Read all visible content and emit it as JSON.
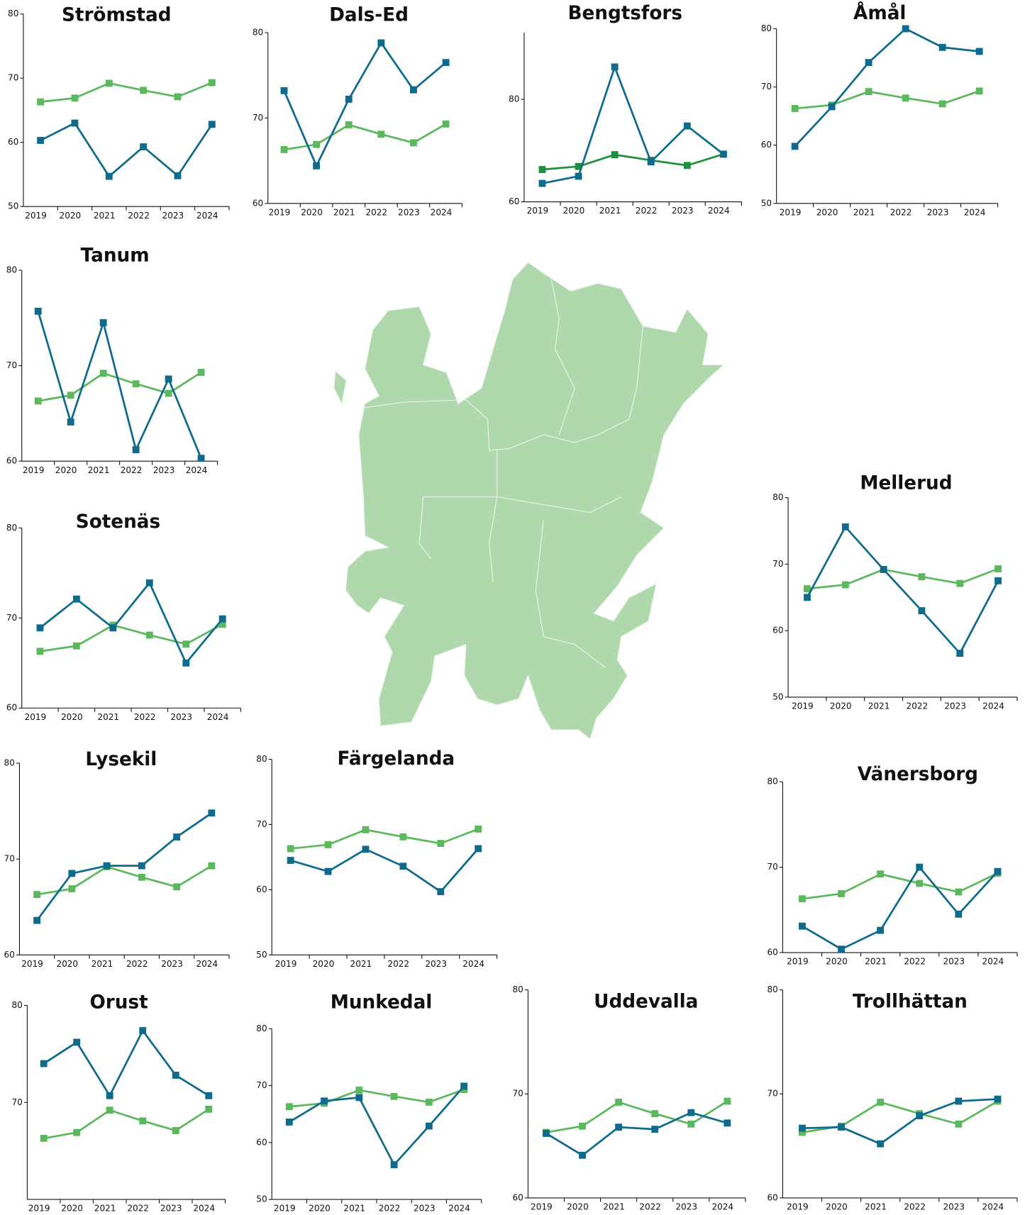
{
  "chart_data": [
    {
      "type": "line",
      "title": "Strömstad",
      "categories": [
        "2019",
        "2020",
        "2021",
        "2022",
        "2023",
        "2024"
      ],
      "ylim": [
        50,
        80
      ],
      "yticks": [
        50,
        60,
        70,
        80
      ],
      "series": [
        {
          "color": "#0e6b8c",
          "values": [
            60.3,
            63,
            54.7,
            59.3,
            54.8,
            62.8
          ]
        },
        {
          "color": "#5cb85c",
          "values": [
            66.3,
            66.9,
            69.2,
            68.1,
            67.1,
            69.3
          ]
        }
      ]
    },
    {
      "type": "line",
      "title": "Dals-Ed",
      "categories": [
        "2019",
        "2020",
        "2021",
        "2022",
        "2023",
        "2024"
      ],
      "ylim": [
        60,
        80
      ],
      "yticks": [
        60,
        70,
        80
      ],
      "series": [
        {
          "color": "#0e6b8c",
          "values": [
            73.2,
            64.4,
            72.2,
            78.8,
            73.3,
            76.5
          ]
        },
        {
          "color": "#5cb85c",
          "values": [
            66.3,
            66.9,
            69.2,
            68.1,
            67.1,
            69.3
          ]
        }
      ]
    },
    {
      "type": "line",
      "title": "Bengtsfors",
      "categories": [
        "2019",
        "2020",
        "2021",
        "2022",
        "2023",
        "2024"
      ],
      "ylim": [
        60,
        93
      ],
      "yticks": [
        60,
        80
      ],
      "series": [
        {
          "color": "#0e6b8c",
          "values": [
            63.6,
            65,
            86.3,
            67.8,
            74.8,
            69.3
          ]
        },
        {
          "color": "#1e8f3c",
          "values": [
            66.3,
            66.9,
            69.2,
            68.1,
            67.1,
            69.3
          ]
        }
      ]
    },
    {
      "type": "line",
      "title": "Åmål",
      "categories": [
        "2019",
        "2020",
        "2021",
        "2022",
        "2023",
        "2024"
      ],
      "ylim": [
        50,
        80
      ],
      "yticks": [
        50,
        60,
        70,
        80
      ],
      "series": [
        {
          "color": "#0e6b8c",
          "values": [
            59.8,
            66.6,
            74.2,
            80,
            76.8,
            76.1
          ]
        },
        {
          "color": "#5cb85c",
          "values": [
            66.3,
            66.9,
            69.2,
            68.1,
            67.1,
            69.3
          ]
        }
      ]
    },
    {
      "type": "line",
      "title": "Tanum",
      "categories": [
        "2019",
        "2020",
        "2021",
        "2022",
        "2023",
        "2024"
      ],
      "ylim": [
        60,
        80
      ],
      "yticks": [
        60,
        70,
        80
      ],
      "series": [
        {
          "color": "#0e6b8c",
          "values": [
            75.7,
            64.1,
            74.5,
            61.2,
            68.6,
            60.3
          ]
        },
        {
          "color": "#5cb85c",
          "values": [
            66.3,
            66.9,
            69.2,
            68.1,
            67.1,
            69.3
          ]
        }
      ]
    },
    {
      "type": "line",
      "title": "Sotenäs",
      "categories": [
        "2019",
        "2020",
        "2021",
        "2022",
        "2023",
        "2024"
      ],
      "ylim": [
        60,
        80
      ],
      "yticks": [
        60,
        70,
        80
      ],
      "series": [
        {
          "color": "#0e6b8c",
          "values": [
            68.9,
            72.1,
            68.9,
            73.9,
            65,
            69.9
          ]
        },
        {
          "color": "#5cb85c",
          "values": [
            66.3,
            66.9,
            69.2,
            68.1,
            67.1,
            69.3
          ]
        }
      ]
    },
    {
      "type": "line",
      "title": "Mellerud",
      "categories": [
        "2019",
        "2020",
        "2021",
        "2022",
        "2023",
        "2024"
      ],
      "ylim": [
        50,
        80
      ],
      "yticks": [
        50,
        60,
        70,
        80
      ],
      "series": [
        {
          "color": "#0e6b8c",
          "values": [
            65,
            75.6,
            69.2,
            63,
            56.6,
            67.5
          ]
        },
        {
          "color": "#5cb85c",
          "values": [
            66.3,
            66.9,
            69.2,
            68.1,
            67.1,
            69.3
          ]
        }
      ]
    },
    {
      "type": "line",
      "title": "Lysekil",
      "categories": [
        "2019",
        "2020",
        "2021",
        "2022",
        "2023",
        "2024"
      ],
      "ylim": [
        60,
        80
      ],
      "yticks": [
        60,
        70,
        80
      ],
      "series": [
        {
          "color": "#0e6b8c",
          "values": [
            63.6,
            68.5,
            69.3,
            69.3,
            72.3,
            74.8
          ]
        },
        {
          "color": "#5cb85c",
          "values": [
            66.3,
            66.9,
            69.2,
            68.1,
            67.1,
            69.3
          ]
        }
      ]
    },
    {
      "type": "line",
      "title": "Färgelanda",
      "categories": [
        "2019",
        "2020",
        "2021",
        "2022",
        "2023",
        "2024"
      ],
      "ylim": [
        50,
        80
      ],
      "yticks": [
        50,
        60,
        70,
        80
      ],
      "series": [
        {
          "color": "#0e6b8c",
          "values": [
            64.5,
            62.8,
            66.2,
            63.6,
            59.7,
            66.3
          ]
        },
        {
          "color": "#5cb85c",
          "values": [
            66.3,
            66.9,
            69.2,
            68.1,
            67.1,
            69.3
          ]
        }
      ]
    },
    {
      "type": "line",
      "title": "Vänersborg",
      "categories": [
        "2019",
        "2020",
        "2021",
        "2022",
        "2023",
        "2024"
      ],
      "ylim": [
        60,
        80
      ],
      "yticks": [
        60,
        70,
        80
      ],
      "series": [
        {
          "color": "#0e6b8c",
          "values": [
            63.1,
            60.4,
            62.6,
            70,
            64.5,
            69.5
          ]
        },
        {
          "color": "#5cb85c",
          "values": [
            66.3,
            66.9,
            69.2,
            68.1,
            67.1,
            69.3
          ]
        }
      ]
    },
    {
      "type": "line",
      "title": "Orust",
      "categories": [
        "2019",
        "2020",
        "2021",
        "2022",
        "2023",
        "2024"
      ],
      "ylim": [
        60,
        80
      ],
      "yticks": [
        70,
        80
      ],
      "series": [
        {
          "color": "#0e6b8c",
          "values": [
            74,
            76.2,
            70.7,
            77.4,
            72.8,
            70.7
          ]
        },
        {
          "color": "#5cb85c",
          "values": [
            66.3,
            66.9,
            69.2,
            68.1,
            67.1,
            69.3
          ]
        }
      ]
    },
    {
      "type": "line",
      "title": "Munkedal",
      "categories": [
        "2019",
        "2020",
        "2021",
        "2022",
        "2023",
        "2024"
      ],
      "ylim": [
        50,
        80
      ],
      "yticks": [
        50,
        60,
        70,
        80
      ],
      "series": [
        {
          "color": "#0e6b8c",
          "values": [
            63.6,
            67.3,
            67.9,
            56.1,
            62.9,
            69.9
          ]
        },
        {
          "color": "#5cb85c",
          "values": [
            66.3,
            66.9,
            69.2,
            68.1,
            67.1,
            69.3
          ]
        }
      ]
    },
    {
      "type": "line",
      "title": "Uddevalla",
      "categories": [
        "2019",
        "2020",
        "2021",
        "2022",
        "2023",
        "2024"
      ],
      "ylim": [
        60,
        80
      ],
      "yticks": [
        60,
        70,
        80
      ],
      "series": [
        {
          "color": "#0e6b8c",
          "values": [
            66.2,
            64.1,
            66.8,
            66.6,
            68.2,
            67.2
          ]
        },
        {
          "color": "#5cb85c",
          "values": [
            66.3,
            66.9,
            69.2,
            68.1,
            67.1,
            69.3
          ]
        }
      ]
    },
    {
      "type": "line",
      "title": "Trollhättan",
      "categories": [
        "2019",
        "2020",
        "2021",
        "2022",
        "2023",
        "2024"
      ],
      "ylim": [
        60,
        80
      ],
      "yticks": [
        60,
        70,
        80
      ],
      "series": [
        {
          "color": "#0e6b8c",
          "values": [
            66.7,
            66.8,
            65.2,
            67.9,
            69.3,
            69.5
          ]
        },
        {
          "color": "#5cb85c",
          "values": [
            66.3,
            66.9,
            69.2,
            68.1,
            67.1,
            69.3
          ]
        }
      ]
    }
  ]
}
